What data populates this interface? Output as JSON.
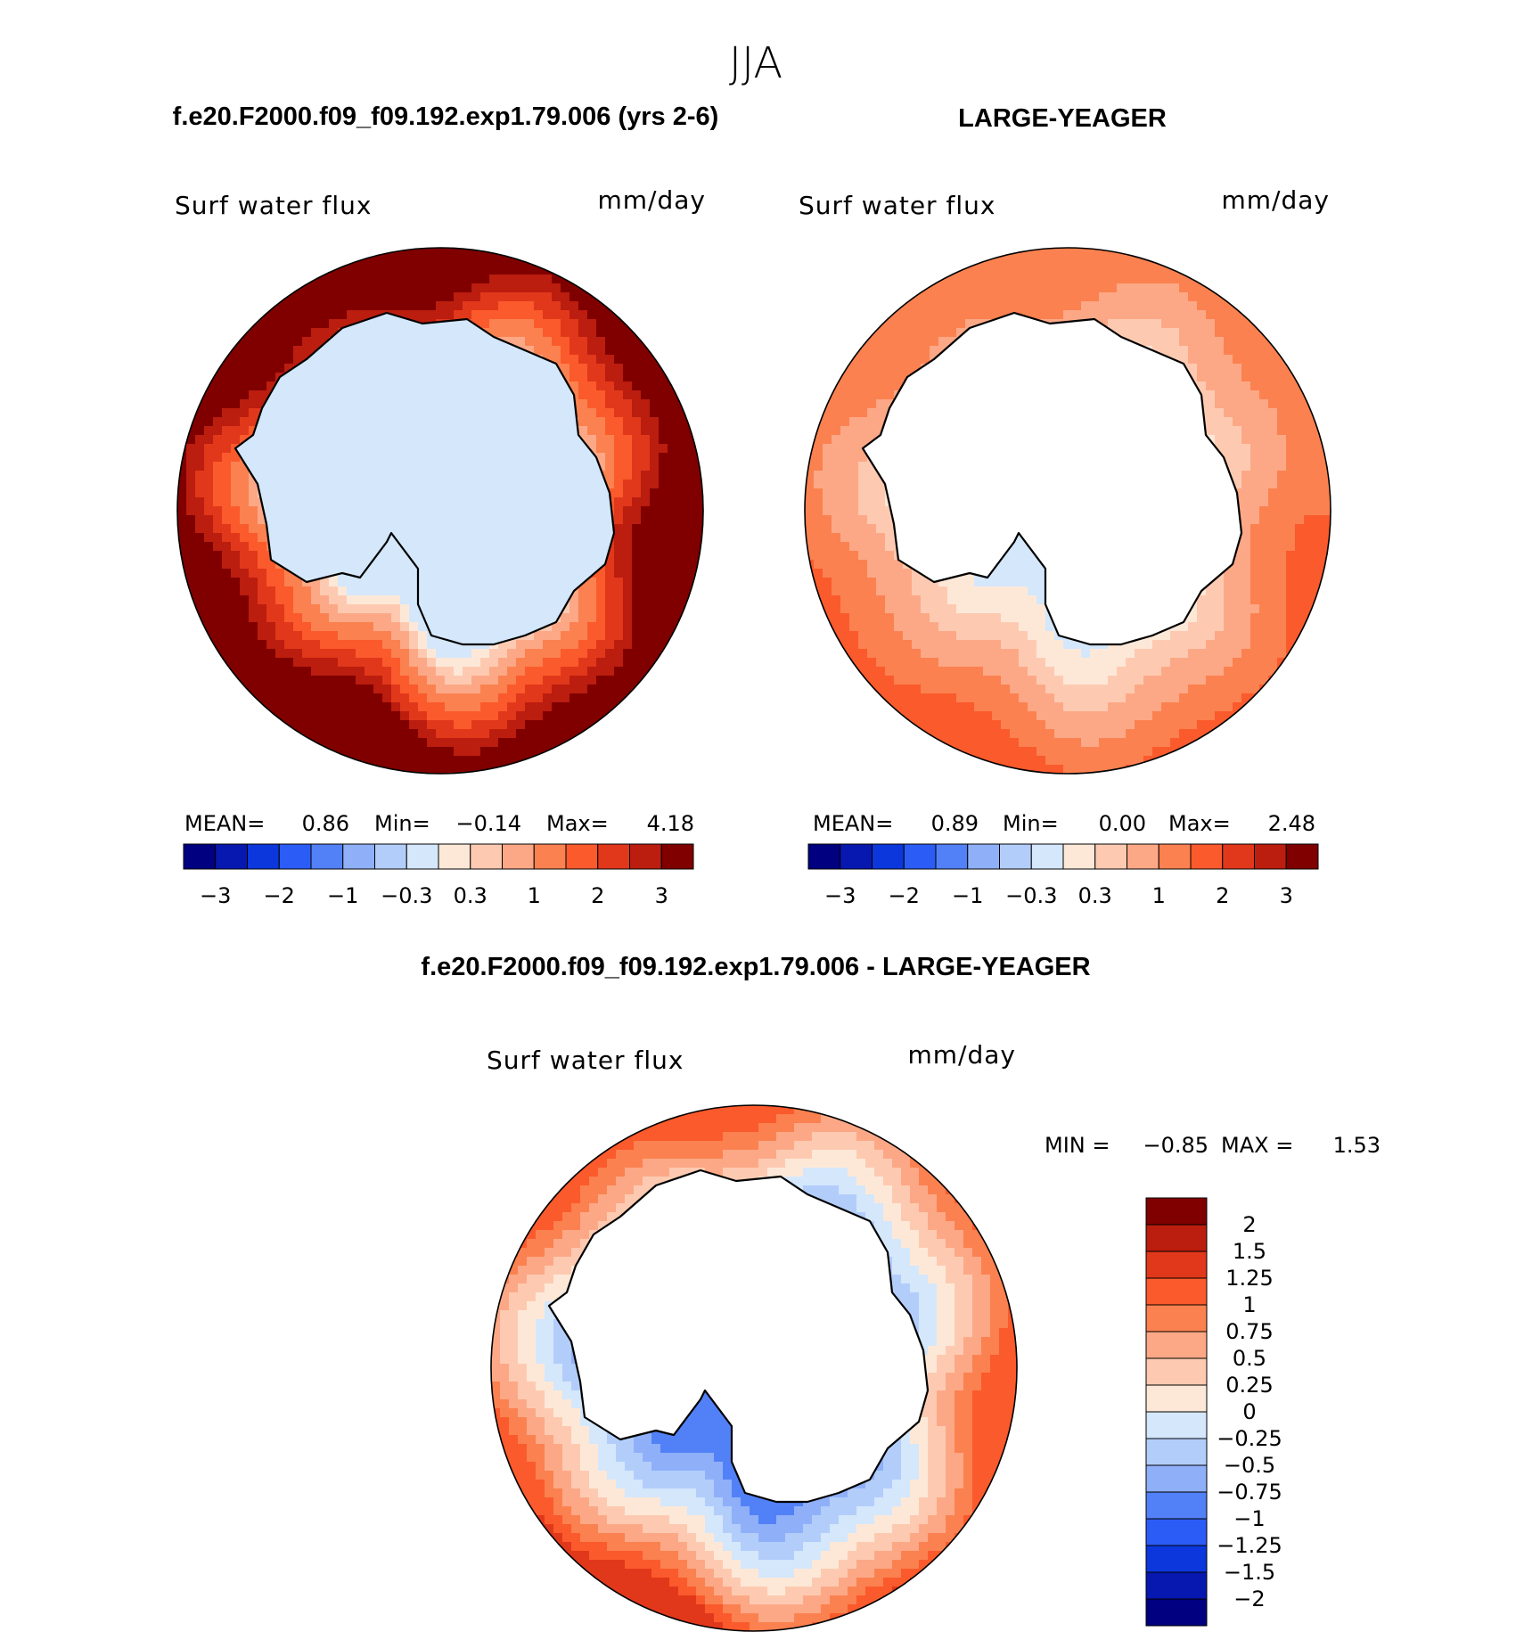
{
  "page_title": "JJA",
  "colors": {
    "seq": [
      "#000080",
      "#0718b0",
      "#0b37dc",
      "#2b5cf5",
      "#5281f7",
      "#8fb0f9",
      "#b3cdfb",
      "#d4e7fb",
      "#fde8d8",
      "#fdcab1",
      "#fca886",
      "#fb8150",
      "#fb5a2c",
      "#e1381b",
      "#bb1d0f",
      "#800000"
    ],
    "diff": [
      "#000080",
      "#0718b0",
      "#0b37dc",
      "#2b5cf5",
      "#5281f7",
      "#8fb0f9",
      "#b3cdfb",
      "#d4e7fb",
      "#fde8d8",
      "#fdcab1",
      "#fca886",
      "#fb8150",
      "#fb5a2c",
      "#e1381b",
      "#bb1d0f",
      "#800000"
    ]
  },
  "chart_data": [
    {
      "type": "heatmap",
      "title": "f.e20.F2000.f09_f09.192.exp1.79.006 (yrs 2-6)",
      "field": "Surf water flux",
      "units": "mm/day",
      "stats": {
        "mean_label": "MEAN=",
        "mean": "0.86",
        "min_label": "Min=",
        "min": "−0.14",
        "max_label": "Max=",
        "max": "4.18"
      },
      "colorbar_ticks": [
        "−3",
        "−2",
        "−1",
        "−0.3",
        "0.3",
        "1",
        "2",
        "3"
      ],
      "contour_levels": [
        -3,
        -2.5,
        -2,
        -1.5,
        -1,
        -0.6,
        -0.3,
        0,
        0.3,
        0.6,
        1,
        1.5,
        2,
        2.5,
        3
      ],
      "land_value": -0.1,
      "field_params": {
        "min": -0.14,
        "max": 4.18,
        "asym": 1.0
      }
    },
    {
      "type": "heatmap",
      "title": "LARGE-YEAGER",
      "field": "Surf water flux",
      "units": "mm/day",
      "stats": {
        "mean_label": "MEAN=",
        "mean": "0.89",
        "min_label": "Min=",
        "min": "0.00",
        "max_label": "Max=",
        "max": "2.48"
      },
      "colorbar_ticks": [
        "−3",
        "−2",
        "−1",
        "−0.3",
        "0.3",
        "1",
        "2",
        "3"
      ],
      "contour_levels": [
        -3,
        -2.5,
        -2,
        -1.5,
        -1,
        -0.6,
        -0.3,
        0,
        0.3,
        0.6,
        1,
        1.5,
        2,
        2.5,
        3
      ],
      "land_value": null,
      "field_params": {
        "min": 0.0,
        "max": 2.48,
        "asym": 0.6
      }
    },
    {
      "type": "heatmap",
      "title": "f.e20.F2000.f09_f09.192.exp1.79.006 - LARGE-YEAGER",
      "field": "Surf water flux",
      "units": "mm/day",
      "minmax": {
        "min_label": "MIN =",
        "min": "−0.85",
        "max_label": "MAX =",
        "max": "1.53"
      },
      "colorbar_ticks": [
        "2",
        "1.5",
        "1.25",
        "1",
        "0.75",
        "0.5",
        "0.25",
        "0",
        "−0.25",
        "−0.5",
        "−0.75",
        "−1",
        "−1.25",
        "−1.5",
        "−2"
      ],
      "contour_levels": [
        -2,
        -1.5,
        -1.25,
        -1,
        -0.75,
        -0.5,
        -0.25,
        0,
        0.25,
        0.5,
        0.75,
        1,
        1.25,
        1.5,
        2
      ],
      "land_value": null,
      "field_params": {
        "min": -0.85,
        "max": 1.53,
        "asym": 0.8
      }
    }
  ]
}
